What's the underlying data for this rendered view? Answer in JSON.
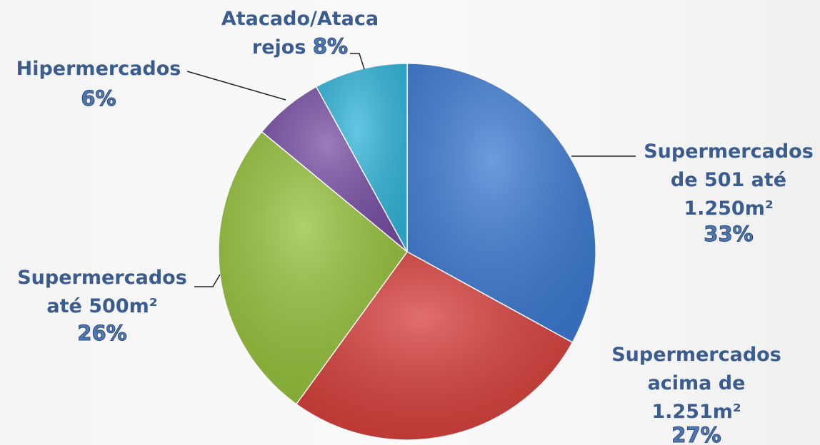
{
  "chart_data": {
    "type": "pie",
    "categories": [
      [
        "Supermercados",
        "de 501 até",
        "1.250m²"
      ],
      [
        "Supermercados",
        "acima de",
        "1.251m²"
      ],
      [
        "Supermercados",
        "até 500m²"
      ],
      [
        "Hipermercados"
      ],
      [
        "Atacado/Ataca",
        "rejos"
      ]
    ],
    "values": [
      33,
      27,
      26,
      6,
      8
    ],
    "value_labels": [
      "33%",
      "27%",
      "26%",
      "6%",
      "8%"
    ],
    "colors": [
      "#3d7bd2",
      "#d63f3b",
      "#95c13b",
      "#7950a6",
      "#33b6da"
    ]
  }
}
